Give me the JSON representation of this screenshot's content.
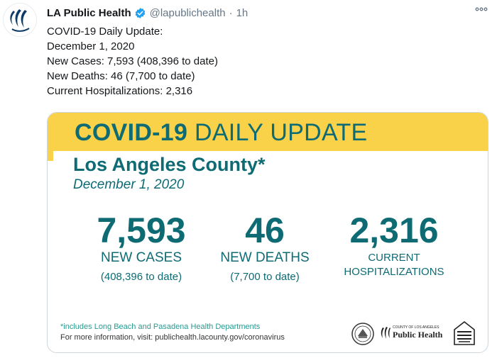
{
  "tweet": {
    "display_name": "LA Public Health",
    "handle": "@lapublichealth",
    "separator": "·",
    "time": "1h",
    "more_icon": "more-horizontal-icon",
    "lines": [
      "COVID-19 Daily Update:",
      "December 1, 2020",
      "New Cases: 7,593 (408,396 to date)",
      "New Deaths: 46 (7,700 to date)",
      "Current Hospitalizations: 2,316"
    ]
  },
  "card": {
    "banner_bold": "COVID-19",
    "banner_rest": " DAILY UPDATE",
    "county": "Los Angeles County*",
    "date": "December 1, 2020",
    "stats": [
      {
        "number": "7,593",
        "label": "NEW CASES",
        "sub": "(408,396 to date)"
      },
      {
        "number": "46",
        "label": "NEW DEATHS",
        "sub": "(7,700 to date)"
      },
      {
        "number": "2,316",
        "label_line1": "CURRENT",
        "label_line2": "HOSPITALIZATIONS"
      }
    ],
    "footnote": "*includes Long Beach and Pasadena Health Departments",
    "more_info": "For more information, visit: publichealth.lacounty.gov/coronavirus",
    "logo_small": "COUNTY OF LOS ANGELES",
    "logo_big": "Public Health"
  },
  "colors": {
    "accent_teal": "#0e6b74",
    "banner_yellow": "#f9d24a",
    "verified_blue": "#1da1f2",
    "muted": "#657786"
  }
}
